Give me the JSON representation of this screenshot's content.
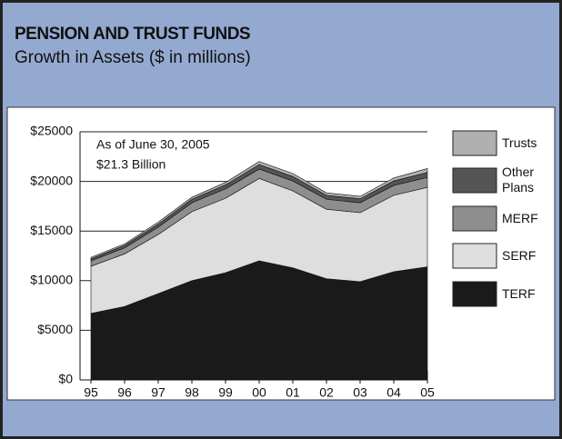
{
  "chart_data": {
    "type": "stacked_area",
    "title": "PENSION AND TRUST FUNDS",
    "subtitle": "Growth in Assets ($ in millions)",
    "annotations": [
      "As of June 30, 2005",
      "$21.3 Billion"
    ],
    "categories": [
      "95",
      "96",
      "97",
      "98",
      "99",
      "00",
      "01",
      "02",
      "03",
      "04",
      "05"
    ],
    "series": [
      {
        "name": "Trusts",
        "color": "#b0b0b0",
        "values": [
          150,
          150,
          200,
          200,
          250,
          300,
          300,
          250,
          250,
          300,
          400
        ]
      },
      {
        "name": "Other Plans",
        "color": "#555555",
        "values": [
          200,
          250,
          300,
          350,
          400,
          450,
          450,
          400,
          400,
          450,
          500
        ]
      },
      {
        "name": "MERF",
        "color": "#8e8e8e",
        "values": [
          550,
          600,
          750,
          900,
          950,
          950,
          1000,
          1000,
          1000,
          1000,
          1000
        ]
      },
      {
        "name": "SERF",
        "color": "#dedede",
        "values": [
          4750,
          5300,
          5950,
          6950,
          7500,
          8300,
          7750,
          7000,
          6950,
          7700,
          8000
        ]
      },
      {
        "name": "TERF",
        "color": "#1a1a1a",
        "values": [
          6700,
          7400,
          8700,
          10000,
          10800,
          12000,
          11300,
          10200,
          9900,
          10900,
          11400
        ]
      }
    ],
    "ylim": [
      0,
      25000
    ],
    "yticks": [
      {
        "value": 0,
        "label": "$0"
      },
      {
        "value": 5000,
        "label": "$5000"
      },
      {
        "value": 10000,
        "label": "$10000"
      },
      {
        "value": 15000,
        "label": "$15000"
      },
      {
        "value": 20000,
        "label": "$20000"
      },
      {
        "value": 25000,
        "label": "$25000"
      }
    ],
    "grid": true
  }
}
